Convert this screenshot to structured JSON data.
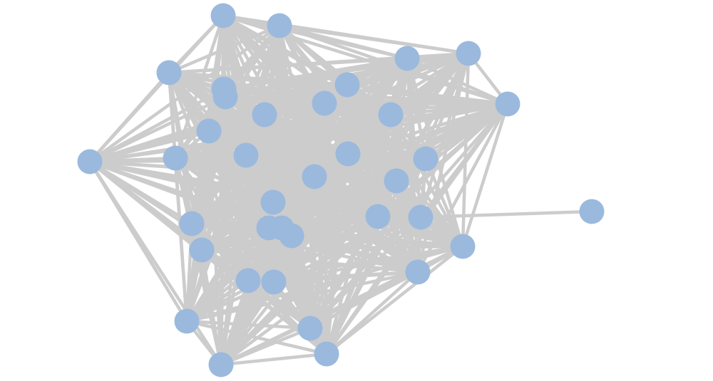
{
  "graph": {
    "type": "network",
    "node_color": "#9ab9dd",
    "edge_color": "#cccccc",
    "nodes": [
      1,
      2,
      3,
      4,
      5,
      6,
      7,
      8,
      9,
      10,
      11,
      12,
      13,
      14,
      15,
      16,
      17,
      18,
      19,
      20,
      21,
      22,
      23,
      24,
      25,
      26,
      27,
      28,
      29,
      30,
      31,
      32,
      33,
      34,
      35,
      36,
      37
    ],
    "dense_core_nodes": [
      1,
      2,
      3,
      4,
      5,
      6,
      7,
      8,
      9,
      10,
      11,
      12,
      13,
      14,
      15,
      16,
      17,
      18,
      19,
      20,
      21,
      22,
      23,
      24,
      25,
      26,
      27,
      28,
      29,
      30,
      31,
      32,
      33,
      34,
      35,
      36
    ],
    "extra_edges": [
      [
        37,
        24
      ]
    ]
  }
}
